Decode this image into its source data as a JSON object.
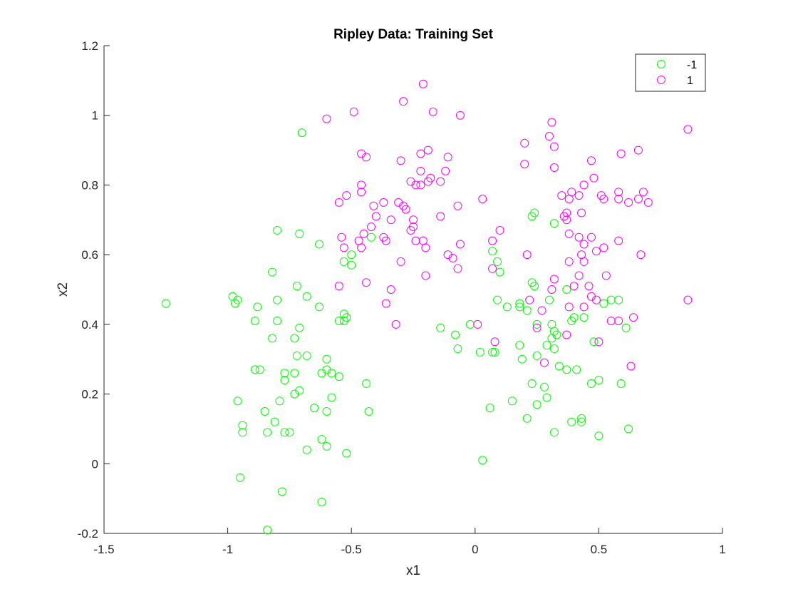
{
  "chart_data": {
    "type": "scatter",
    "title": "Ripley Data: Training Set",
    "xlabel": "x1",
    "ylabel": "x2",
    "xlim": [
      -1.5,
      1
    ],
    "ylim": [
      -0.2,
      1.2
    ],
    "xticks": [
      "-1.5",
      "-1",
      "-0.5",
      "0",
      "0.5",
      "1"
    ],
    "yticks": [
      "-0.2",
      "0",
      "0.2",
      "0.4",
      "0.6",
      "0.8",
      "1",
      "1.2"
    ],
    "grid": false,
    "legend_position": "top-right",
    "marker": "open-circle",
    "series": [
      {
        "name": "-1",
        "color": "#00ff00",
        "points": [
          [
            -1.25,
            0.46
          ],
          [
            -0.98,
            0.48
          ],
          [
            -0.97,
            0.46
          ],
          [
            -0.96,
            0.47
          ],
          [
            -0.88,
            0.45
          ],
          [
            -0.89,
            0.41
          ],
          [
            -0.82,
            0.55
          ],
          [
            -0.8,
            0.67
          ],
          [
            -0.8,
            0.47
          ],
          [
            -0.8,
            0.41
          ],
          [
            -0.82,
            0.36
          ],
          [
            -0.7,
            0.95
          ],
          [
            -0.71,
            0.66
          ],
          [
            -0.72,
            0.51
          ],
          [
            -0.68,
            0.48
          ],
          [
            -0.71,
            0.39
          ],
          [
            -0.73,
            0.36
          ],
          [
            -0.72,
            0.31
          ],
          [
            -0.68,
            0.31
          ],
          [
            -0.63,
            0.63
          ],
          [
            -0.63,
            0.45
          ],
          [
            -0.89,
            0.27
          ],
          [
            -0.87,
            0.27
          ],
          [
            -0.77,
            0.26
          ],
          [
            -0.77,
            0.24
          ],
          [
            -0.73,
            0.26
          ],
          [
            -0.73,
            0.2
          ],
          [
            -0.71,
            0.21
          ],
          [
            -0.96,
            0.18
          ],
          [
            -0.79,
            0.18
          ],
          [
            -0.85,
            0.15
          ],
          [
            -0.94,
            0.11
          ],
          [
            -0.94,
            0.09
          ],
          [
            -0.84,
            0.09
          ],
          [
            -0.81,
            0.12
          ],
          [
            -0.77,
            0.09
          ],
          [
            -0.75,
            0.09
          ],
          [
            -0.68,
            0.04
          ],
          [
            -0.95,
            -0.04
          ],
          [
            -0.78,
            -0.08
          ],
          [
            -0.84,
            -0.19
          ],
          [
            -0.62,
            -0.11
          ],
          [
            -0.62,
            0.07
          ],
          [
            -0.6,
            0.05
          ],
          [
            -0.52,
            0.03
          ],
          [
            -0.6,
            0.15
          ],
          [
            -0.65,
            0.16
          ],
          [
            -0.58,
            0.19
          ],
          [
            -0.62,
            0.26
          ],
          [
            -0.6,
            0.27
          ],
          [
            -0.58,
            0.26
          ],
          [
            -0.55,
            0.25
          ],
          [
            -0.6,
            0.3
          ],
          [
            -0.52,
            0.42
          ],
          [
            -0.53,
            0.43
          ],
          [
            -0.55,
            0.41
          ],
          [
            -0.53,
            0.58
          ],
          [
            -0.5,
            0.6
          ],
          [
            -0.5,
            0.57
          ],
          [
            -0.53,
            0.41
          ],
          [
            -0.44,
            0.23
          ],
          [
            -0.43,
            0.15
          ],
          [
            -0.42,
            0.65
          ],
          [
            -0.14,
            0.39
          ],
          [
            -0.08,
            0.37
          ],
          [
            -0.07,
            0.33
          ],
          [
            -0.02,
            0.4
          ],
          [
            0.02,
            0.32
          ],
          [
            0.03,
            0.01
          ],
          [
            0.06,
            0.16
          ],
          [
            0.07,
            0.32
          ],
          [
            0.08,
            0.32
          ],
          [
            0.07,
            0.61
          ],
          [
            0.09,
            0.58
          ],
          [
            0.1,
            0.55
          ],
          [
            0.09,
            0.47
          ],
          [
            0.13,
            0.45
          ],
          [
            0.15,
            0.18
          ],
          [
            0.18,
            0.46
          ],
          [
            0.18,
            0.45
          ],
          [
            0.19,
            0.3
          ],
          [
            0.18,
            0.34
          ],
          [
            0.21,
            0.44
          ],
          [
            0.23,
            0.52
          ],
          [
            0.24,
            0.51
          ],
          [
            0.23,
            0.71
          ],
          [
            0.24,
            0.72
          ],
          [
            0.32,
            0.69
          ],
          [
            0.25,
            0.4
          ],
          [
            0.25,
            0.31
          ],
          [
            0.25,
            0.17
          ],
          [
            0.23,
            0.23
          ],
          [
            0.21,
            0.13
          ],
          [
            0.28,
            0.22
          ],
          [
            0.29,
            0.19
          ],
          [
            0.29,
            0.34
          ],
          [
            0.31,
            0.36
          ],
          [
            0.3,
            0.47
          ],
          [
            0.31,
            0.4
          ],
          [
            0.32,
            0.38
          ],
          [
            0.32,
            0.33
          ],
          [
            0.33,
            0.37
          ],
          [
            0.32,
            0.09
          ],
          [
            0.34,
            0.28
          ],
          [
            0.37,
            0.27
          ],
          [
            0.37,
            0.5
          ],
          [
            0.39,
            0.41
          ],
          [
            0.4,
            0.42
          ],
          [
            0.41,
            0.27
          ],
          [
            0.39,
            0.12
          ],
          [
            0.43,
            0.13
          ],
          [
            0.43,
            0.12
          ],
          [
            0.44,
            0.42
          ],
          [
            0.47,
            0.23
          ],
          [
            0.48,
            0.35
          ],
          [
            0.5,
            0.24
          ],
          [
            0.5,
            0.08
          ],
          [
            0.52,
            0.46
          ],
          [
            0.55,
            0.47
          ],
          [
            0.58,
            0.47
          ],
          [
            0.59,
            0.23
          ],
          [
            0.61,
            0.39
          ],
          [
            0.62,
            0.1
          ]
        ]
      },
      {
        "name": "1",
        "color": "#ff00ff",
        "points": [
          [
            -0.6,
            0.99
          ],
          [
            -0.49,
            1.01
          ],
          [
            -0.29,
            1.04
          ],
          [
            -0.21,
            1.09
          ],
          [
            -0.17,
            1.01
          ],
          [
            -0.06,
            1.0
          ],
          [
            -0.46,
            0.89
          ],
          [
            -0.44,
            0.88
          ],
          [
            -0.3,
            0.87
          ],
          [
            -0.22,
            0.89
          ],
          [
            -0.19,
            0.9
          ],
          [
            -0.11,
            0.88
          ],
          [
            -0.12,
            0.84
          ],
          [
            -0.22,
            0.84
          ],
          [
            -0.26,
            0.81
          ],
          [
            -0.24,
            0.8
          ],
          [
            -0.22,
            0.8
          ],
          [
            -0.19,
            0.81
          ],
          [
            -0.18,
            0.82
          ],
          [
            -0.14,
            0.81
          ],
          [
            -0.52,
            0.77
          ],
          [
            -0.55,
            0.75
          ],
          [
            -0.46,
            0.8
          ],
          [
            -0.46,
            0.78
          ],
          [
            -0.41,
            0.74
          ],
          [
            -0.37,
            0.75
          ],
          [
            -0.31,
            0.75
          ],
          [
            -0.29,
            0.74
          ],
          [
            -0.28,
            0.73
          ],
          [
            -0.4,
            0.71
          ],
          [
            -0.34,
            0.7
          ],
          [
            -0.25,
            0.7
          ],
          [
            -0.25,
            0.68
          ],
          [
            -0.26,
            0.67
          ],
          [
            -0.42,
            0.68
          ],
          [
            -0.45,
            0.66
          ],
          [
            -0.47,
            0.64
          ],
          [
            -0.54,
            0.65
          ],
          [
            -0.53,
            0.62
          ],
          [
            -0.46,
            0.62
          ],
          [
            -0.37,
            0.65
          ],
          [
            -0.36,
            0.64
          ],
          [
            -0.24,
            0.64
          ],
          [
            -0.21,
            0.64
          ],
          [
            -0.2,
            0.62
          ],
          [
            -0.06,
            0.63
          ],
          [
            -0.14,
            0.71
          ],
          [
            -0.07,
            0.74
          ],
          [
            0.03,
            0.76
          ],
          [
            -0.11,
            0.6
          ],
          [
            -0.09,
            0.59
          ],
          [
            -0.3,
            0.58
          ],
          [
            -0.07,
            0.56
          ],
          [
            -0.2,
            0.54
          ],
          [
            -0.55,
            0.51
          ],
          [
            -0.44,
            0.52
          ],
          [
            -0.34,
            0.5
          ],
          [
            -0.36,
            0.46
          ],
          [
            -0.32,
            0.4
          ],
          [
            0.01,
            0.4
          ],
          [
            0.07,
            0.64
          ],
          [
            0.1,
            0.67
          ],
          [
            0.07,
            0.56
          ],
          [
            0.08,
            0.35
          ],
          [
            0.2,
            0.92
          ],
          [
            0.31,
            0.98
          ],
          [
            0.3,
            0.94
          ],
          [
            0.32,
            0.91
          ],
          [
            0.32,
            0.85
          ],
          [
            0.35,
            0.77
          ],
          [
            0.38,
            0.76
          ],
          [
            0.39,
            0.78
          ],
          [
            0.42,
            0.77
          ],
          [
            0.44,
            0.8
          ],
          [
            0.47,
            0.87
          ],
          [
            0.48,
            0.82
          ],
          [
            0.37,
            0.72
          ],
          [
            0.36,
            0.71
          ],
          [
            0.37,
            0.7
          ],
          [
            0.43,
            0.72
          ],
          [
            0.51,
            0.77
          ],
          [
            0.52,
            0.76
          ],
          [
            0.58,
            0.78
          ],
          [
            0.58,
            0.76
          ],
          [
            0.59,
            0.89
          ],
          [
            0.62,
            0.75
          ],
          [
            0.66,
            0.76
          ],
          [
            0.66,
            0.9
          ],
          [
            0.68,
            0.78
          ],
          [
            0.7,
            0.75
          ],
          [
            0.86,
            0.96
          ],
          [
            0.38,
            0.66
          ],
          [
            0.42,
            0.65
          ],
          [
            0.44,
            0.63
          ],
          [
            0.47,
            0.65
          ],
          [
            0.49,
            0.61
          ],
          [
            0.52,
            0.62
          ],
          [
            0.58,
            0.64
          ],
          [
            0.43,
            0.6
          ],
          [
            0.38,
            0.58
          ],
          [
            0.44,
            0.58
          ],
          [
            0.42,
            0.54
          ],
          [
            0.53,
            0.54
          ],
          [
            0.32,
            0.53
          ],
          [
            0.4,
            0.51
          ],
          [
            0.46,
            0.51
          ],
          [
            0.47,
            0.48
          ],
          [
            0.49,
            0.47
          ],
          [
            0.38,
            0.45
          ],
          [
            0.44,
            0.45
          ],
          [
            0.55,
            0.41
          ],
          [
            0.58,
            0.41
          ],
          [
            0.64,
            0.42
          ],
          [
            0.67,
            0.6
          ],
          [
            0.86,
            0.47
          ],
          [
            0.31,
            0.5
          ],
          [
            0.21,
            0.6
          ],
          [
            0.22,
            0.47
          ],
          [
            0.27,
            0.44
          ],
          [
            0.25,
            0.39
          ],
          [
            0.37,
            0.37
          ],
          [
            0.5,
            0.35
          ],
          [
            0.28,
            0.29
          ],
          [
            0.63,
            0.28
          ],
          [
            0.2,
            0.86
          ]
        ]
      }
    ]
  }
}
